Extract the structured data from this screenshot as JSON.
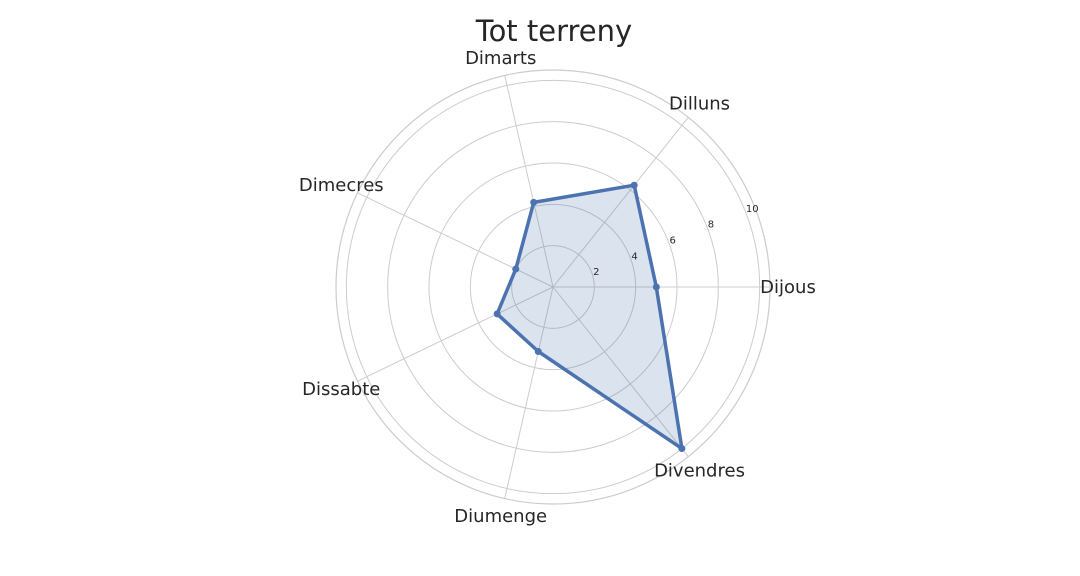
{
  "chart_data": {
    "type": "radar",
    "title": "Tot terreny",
    "categories": [
      "Dijous",
      "Dilluns",
      "Dimarts",
      "Dimecres",
      "Dissabte",
      "Diumenge",
      "Divendres"
    ],
    "series": [
      {
        "values": [
          5.0,
          6.3,
          4.2,
          2.0,
          3.0,
          3.2,
          10.0
        ]
      }
    ],
    "radial_ticks": [
      2,
      4,
      6,
      8,
      10
    ],
    "rlim": [
      0,
      10.5
    ],
    "grid": true,
    "colors": {
      "line": "#4c72b0",
      "fill": "#4c72b0",
      "grid": "#cccccc"
    }
  }
}
